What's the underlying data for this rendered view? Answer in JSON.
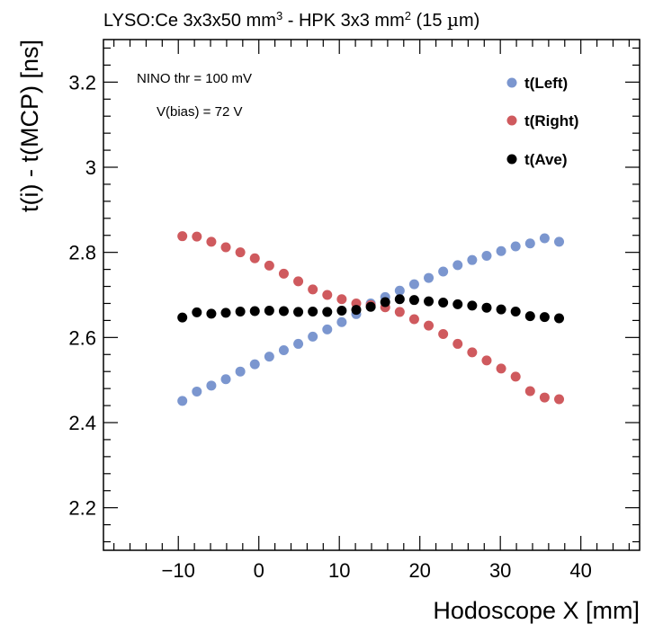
{
  "chart_data": {
    "type": "scatter",
    "title": "LYSO:Ce 3x3x50 mm³ - HPK 3x3 mm² (15 µm)",
    "xlabel": "Hodoscope X [mm]",
    "ylabel": "t(i) - t(MCP) [ns]",
    "xlim": [
      -19.3,
      47.3
    ],
    "ylim": [
      2.1,
      3.3
    ],
    "xticks": [
      -10,
      0,
      10,
      20,
      30,
      40
    ],
    "xtick_labels": [
      "−10",
      "0",
      "10",
      "20",
      "30",
      "40"
    ],
    "yticks": [
      2.2,
      2.4,
      2.6,
      2.8,
      3.0,
      3.2
    ],
    "ytick_labels": [
      "2.2",
      "2.4",
      "2.6",
      "2.8",
      "3",
      "3.2"
    ],
    "annotations": [
      "NINO thr = 100 mV",
      "V(bias) = 72 V"
    ],
    "legend_position": "top-right",
    "series": [
      {
        "name": "t(Left)",
        "color": "#7b96cf",
        "x": [
          -9.5,
          -7.7,
          -5.9,
          -4.1,
          -2.3,
          -0.5,
          1.3,
          3.1,
          4.9,
          6.7,
          8.5,
          10.3,
          12.1,
          13.9,
          15.7,
          17.5,
          19.3,
          21.1,
          22.9,
          24.7,
          26.5,
          28.3,
          30.1,
          31.9,
          33.7,
          35.5,
          37.3
        ],
        "y": [
          2.451,
          2.473,
          2.487,
          2.502,
          2.52,
          2.537,
          2.555,
          2.57,
          2.585,
          2.602,
          2.619,
          2.636,
          2.655,
          2.68,
          2.695,
          2.71,
          2.725,
          2.74,
          2.755,
          2.77,
          2.782,
          2.792,
          2.803,
          2.814,
          2.821,
          2.833,
          2.825
        ]
      },
      {
        "name": "t(Right)",
        "color": "#cf5a5e",
        "x": [
          -9.5,
          -7.7,
          -5.9,
          -4.1,
          -2.3,
          -0.5,
          1.3,
          3.1,
          4.9,
          6.7,
          8.5,
          10.3,
          12.1,
          13.9,
          15.7,
          17.5,
          19.3,
          21.1,
          22.9,
          24.7,
          26.5,
          28.3,
          30.1,
          31.9,
          33.7,
          35.5,
          37.3
        ],
        "y": [
          2.838,
          2.837,
          2.825,
          2.812,
          2.8,
          2.786,
          2.769,
          2.75,
          2.732,
          2.713,
          2.7,
          2.69,
          2.68,
          2.676,
          2.671,
          2.66,
          2.643,
          2.628,
          2.608,
          2.585,
          2.565,
          2.546,
          2.527,
          2.508,
          2.474,
          2.459,
          2.455
        ]
      },
      {
        "name": "t(Ave)",
        "color": "#000000",
        "x": [
          -9.5,
          -7.7,
          -5.9,
          -4.1,
          -2.3,
          -0.5,
          1.3,
          3.1,
          4.9,
          6.7,
          8.5,
          10.3,
          12.1,
          13.9,
          15.7,
          17.5,
          19.3,
          21.1,
          22.9,
          24.7,
          26.5,
          28.3,
          30.1,
          31.9,
          33.7,
          35.5,
          37.3
        ],
        "y": [
          2.647,
          2.659,
          2.656,
          2.658,
          2.661,
          2.662,
          2.663,
          2.662,
          2.66,
          2.661,
          2.66,
          2.663,
          2.665,
          2.672,
          2.683,
          2.69,
          2.688,
          2.685,
          2.682,
          2.678,
          2.675,
          2.67,
          2.666,
          2.661,
          2.65,
          2.648,
          2.645
        ]
      }
    ]
  }
}
